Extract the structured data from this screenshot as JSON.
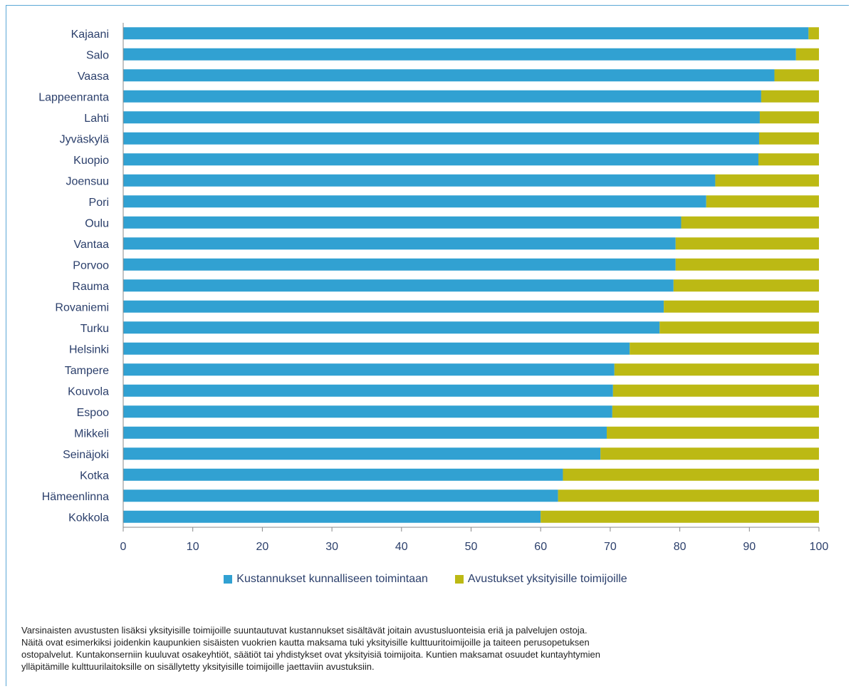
{
  "chart_data": {
    "type": "bar",
    "orientation": "horizontal",
    "stacked": true,
    "categories": [
      "Kajaani",
      "Salo",
      "Vaasa",
      "Lappeenranta",
      "Lahti",
      "Jyväskylä",
      "Kuopio",
      "Joensuu",
      "Pori",
      "Oulu",
      "Vantaa",
      "Porvoo",
      "Rauma",
      "Rovaniemi",
      "Turku",
      "Helsinki",
      "Tampere",
      "Kouvola",
      "Espoo",
      "Mikkeli",
      "Seinäjoki",
      "Kotka",
      "Hämeenlinna",
      "Kokkola"
    ],
    "series": [
      {
        "name": "Kustannukset kunnalliseen toimintaan",
        "color": "#31a1d2",
        "values": [
          98.5,
          96.7,
          93.6,
          91.7,
          91.5,
          91.4,
          91.3,
          85.1,
          83.8,
          80.2,
          79.4,
          79.4,
          79.1,
          77.7,
          77.1,
          72.8,
          70.6,
          70.4,
          70.3,
          69.5,
          68.6,
          63.2,
          62.5,
          60.0
        ]
      },
      {
        "name": "Avustukset yksityisille toimijoille",
        "color": "#bcb914",
        "values": [
          1.5,
          3.3,
          6.4,
          8.3,
          8.5,
          8.6,
          8.7,
          14.9,
          16.2,
          19.8,
          20.6,
          20.6,
          20.9,
          22.3,
          22.9,
          27.2,
          29.4,
          29.6,
          29.7,
          30.5,
          31.4,
          36.8,
          37.5,
          40.0
        ]
      }
    ],
    "xticks": [
      "0",
      "10",
      "20",
      "30",
      "40",
      "50",
      "60",
      "70",
      "80",
      "90",
      "100"
    ],
    "xlim": [
      0,
      100
    ],
    "grid": false,
    "legend_position": "bottom"
  },
  "legend": {
    "item1": "Kustannukset kunnalliseen toimintaan",
    "item2": "Avustukset yksityisille toimijoille"
  },
  "note": {
    "lines": [
      "Varsinaisten avustusten lisäksi yksityisille toimijoille suuntautuvat kustannukset sisältävät joitain avustusluonteisia eriä ja palvelujen ostoja.",
      "Näitä ovat esimerkiksi joidenkin kaupunkien sisäisten vuokrien kautta maksama tuki yksityisille kulttuuritoimijoille ja taiteen perusopetuksen",
      "ostopalvelut. Kuntakonserniin kuuluvat osakeyhtiöt, säätiöt tai yhdistykset ovat yksityisiä toimijoita. Kuntien maksamat osuudet kuntayhtymien",
      "ylläpitämille kulttuurilaitoksille on sisällytetty yksityisille toimijoille jaettaviin avustuksiin."
    ]
  }
}
